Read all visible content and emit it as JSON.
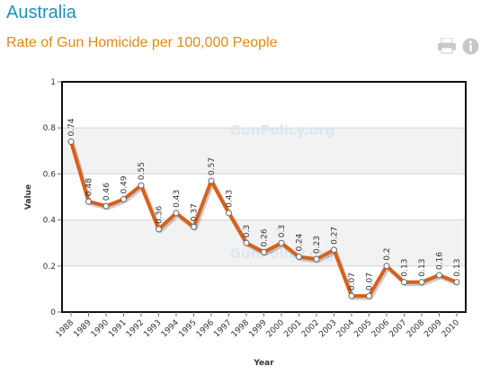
{
  "header": {
    "country": "Australia",
    "chart_title": "Rate of Gun Homicide per 100,000 People"
  },
  "toolbar": {
    "print_icon": "printer-icon",
    "info_icon": "info-icon",
    "icon_color": "#c8c8c8"
  },
  "watermarks": [
    "GunPolicy.org",
    "GunPolicy.org"
  ],
  "colors": {
    "line": "#d9601a",
    "plot_band": "#f2f2f2",
    "title_blue": "#1f8fbf",
    "title_orange": "#e08a12"
  },
  "chart_data": {
    "type": "line",
    "title": "Rate of Gun Homicide per 100,000 People",
    "xlabel": "Year",
    "ylabel": "Value",
    "ylim": [
      0,
      1
    ],
    "yticks": [
      "0",
      "0.2",
      "0.4",
      "0.6",
      "0.8",
      "1"
    ],
    "grid": true,
    "legend": "none",
    "categories": [
      "1988",
      "1989",
      "1990",
      "1991",
      "1992",
      "1993",
      "1994",
      "1995",
      "1996",
      "1997",
      "1998",
      "1999",
      "2000",
      "2001",
      "2002",
      "2003",
      "2004",
      "2005",
      "2006",
      "2007",
      "2008",
      "2009",
      "2010"
    ],
    "series": [
      {
        "values": [
          0.74,
          0.48,
          0.46,
          0.49,
          0.55,
          0.36,
          0.43,
          0.37,
          0.57,
          0.43,
          0.3,
          0.26,
          0.3,
          0.24,
          0.23,
          0.27,
          0.07,
          0.07,
          0.2,
          0.13,
          0.13,
          0.16,
          0.13
        ],
        "labels": [
          "0.74",
          "0.48",
          "0.46",
          "0.49",
          "0.55",
          "0.36",
          "0.43",
          "0.37",
          "0.57",
          "0.43",
          "0.3",
          "0.26",
          "0.3",
          "0.24",
          "0.23",
          "0.27",
          "0.07",
          "0.07",
          "0.2",
          "0.13",
          "0.13",
          "0.16",
          "0.13"
        ]
      }
    ]
  }
}
